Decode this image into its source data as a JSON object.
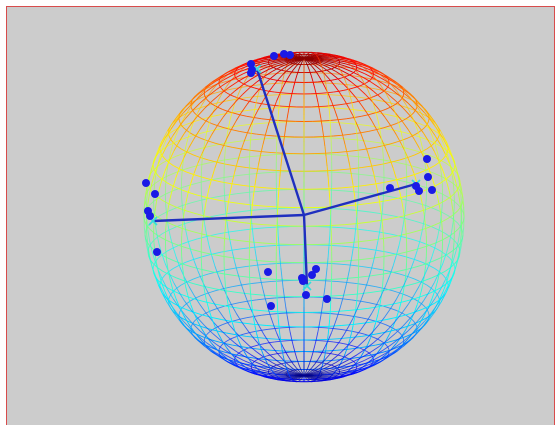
{
  "colors": {
    "background": "#cccccc",
    "frame_border": "#d84c4c",
    "axis_line": "#1f2fbf",
    "axis_tip_marker": "#33dddd",
    "data_point": "#1a1ae6",
    "mesh_colormap": "jet"
  },
  "icons": {
    "axis_tip": "x-marker",
    "data_point": "filled-circle"
  },
  "sphere": {
    "latitude_lines": 28,
    "longitude_lines": 36
  },
  "axes": [
    {
      "name": "axis-left",
      "direction": "left"
    },
    {
      "name": "axis-right",
      "direction": "right"
    },
    {
      "name": "axis-down",
      "direction": "down"
    },
    {
      "name": "axis-up",
      "direction": "up"
    }
  ],
  "point_count": 25
}
